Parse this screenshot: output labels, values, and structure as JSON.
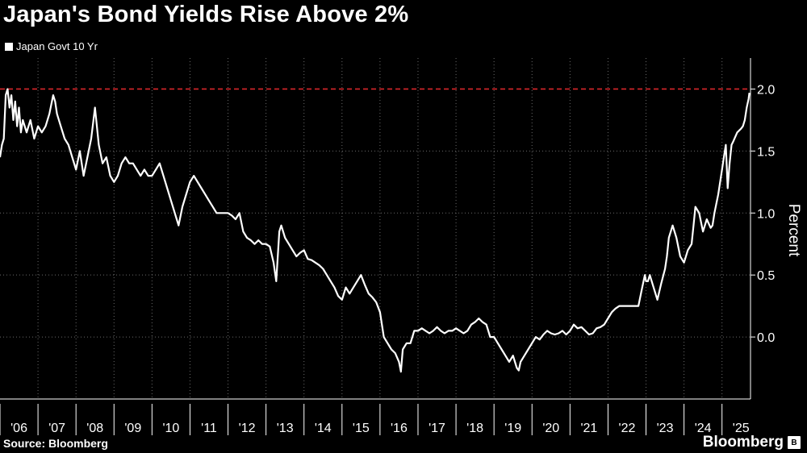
{
  "colors": {
    "background": "#000000",
    "series": "#ffffff",
    "threshold": "#d9262b",
    "grid": "#6a6a6a",
    "axis": "#ffffff"
  },
  "footer": {
    "source": "Source: Bloomberg",
    "brand": "Bloomberg",
    "brand_badge_icon": "bloomberg-badge-icon"
  },
  "chart_data": {
    "type": "line",
    "title": "Japan's Bond Yields Rise Above 2%",
    "legend": {
      "position": "top-left",
      "entries": [
        "Japan Govt 10 Yr"
      ]
    },
    "ylabel": "Percent",
    "xlabel": "",
    "xlim": [
      2006.0,
      2025.75
    ],
    "ylim": [
      -0.5,
      2.25
    ],
    "y_ticks": [
      0.0,
      0.5,
      1.0,
      1.5,
      2.0
    ],
    "y_tick_labels": [
      "0.0",
      "0.5",
      "1.0",
      "1.5",
      "2.0"
    ],
    "x_ticks": [
      2006,
      2007,
      2008,
      2009,
      2010,
      2011,
      2012,
      2013,
      2014,
      2015,
      2016,
      2017,
      2018,
      2019,
      2020,
      2021,
      2022,
      2023,
      2024,
      2025
    ],
    "x_tick_labels": [
      "'06",
      "'07",
      "'08",
      "'09",
      "'10",
      "'11",
      "'12",
      "'13",
      "'14",
      "'15",
      "'16",
      "'17",
      "'18",
      "'19",
      "'20",
      "'21",
      "'22",
      "'23",
      "'24",
      "'25"
    ],
    "grid": true,
    "threshold_line": {
      "y": 2.0,
      "style": "dashed"
    },
    "series": [
      {
        "name": "Japan Govt 10 Yr",
        "x": [
          2006.0,
          2006.05,
          2006.1,
          2006.15,
          2006.2,
          2006.25,
          2006.3,
          2006.35,
          2006.4,
          2006.45,
          2006.5,
          2006.55,
          2006.6,
          2006.7,
          2006.8,
          2006.9,
          2007.0,
          2007.1,
          2007.2,
          2007.3,
          2007.4,
          2007.45,
          2007.5,
          2007.6,
          2007.7,
          2007.8,
          2007.9,
          2008.0,
          2008.1,
          2008.2,
          2008.3,
          2008.4,
          2008.5,
          2008.6,
          2008.7,
          2008.8,
          2008.9,
          2009.0,
          2009.1,
          2009.2,
          2009.3,
          2009.4,
          2009.5,
          2009.6,
          2009.7,
          2009.8,
          2009.9,
          2010.0,
          2010.1,
          2010.2,
          2010.3,
          2010.4,
          2010.5,
          2010.6,
          2010.7,
          2010.8,
          2010.9,
          2011.0,
          2011.1,
          2011.2,
          2011.3,
          2011.4,
          2011.5,
          2011.6,
          2011.7,
          2011.8,
          2011.9,
          2012.0,
          2012.1,
          2012.2,
          2012.3,
          2012.4,
          2012.5,
          2012.6,
          2012.7,
          2012.8,
          2012.9,
          2013.0,
          2013.1,
          2013.2,
          2013.27,
          2013.35,
          2013.4,
          2013.5,
          2013.6,
          2013.7,
          2013.8,
          2013.9,
          2014.0,
          2014.1,
          2014.2,
          2014.3,
          2014.4,
          2014.5,
          2014.6,
          2014.7,
          2014.8,
          2014.9,
          2015.0,
          2015.1,
          2015.2,
          2015.3,
          2015.4,
          2015.5,
          2015.6,
          2015.7,
          2015.8,
          2015.9,
          2016.0,
          2016.1,
          2016.2,
          2016.3,
          2016.4,
          2016.5,
          2016.55,
          2016.6,
          2016.7,
          2016.8,
          2016.9,
          2017.0,
          2017.1,
          2017.2,
          2017.3,
          2017.4,
          2017.5,
          2017.6,
          2017.7,
          2017.8,
          2017.9,
          2018.0,
          2018.1,
          2018.2,
          2018.3,
          2018.4,
          2018.5,
          2018.6,
          2018.7,
          2018.8,
          2018.9,
          2019.0,
          2019.1,
          2019.2,
          2019.3,
          2019.4,
          2019.5,
          2019.6,
          2019.65,
          2019.7,
          2019.8,
          2019.9,
          2020.0,
          2020.1,
          2020.2,
          2020.3,
          2020.4,
          2020.5,
          2020.6,
          2020.7,
          2020.8,
          2020.9,
          2021.0,
          2021.1,
          2021.2,
          2021.3,
          2021.4,
          2021.5,
          2021.6,
          2021.7,
          2021.8,
          2021.9,
          2022.0,
          2022.1,
          2022.2,
          2022.3,
          2022.4,
          2022.5,
          2022.6,
          2022.7,
          2022.8,
          2022.9,
          2022.97,
          2023.0,
          2023.05,
          2023.1,
          2023.2,
          2023.3,
          2023.4,
          2023.5,
          2023.55,
          2023.6,
          2023.7,
          2023.8,
          2023.9,
          2024.0,
          2024.1,
          2024.2,
          2024.25,
          2024.3,
          2024.4,
          2024.5,
          2024.6,
          2024.7,
          2024.75,
          2024.8,
          2024.9,
          2025.0,
          2025.05,
          2025.1,
          2025.15,
          2025.2,
          2025.25,
          2025.3,
          2025.4,
          2025.5,
          2025.55,
          2025.6,
          2025.65,
          2025.7,
          2025.72
        ],
        "values": [
          1.45,
          1.55,
          1.6,
          1.95,
          2.0,
          1.85,
          1.95,
          1.75,
          1.9,
          1.7,
          1.85,
          1.65,
          1.75,
          1.65,
          1.75,
          1.6,
          1.7,
          1.65,
          1.7,
          1.8,
          1.95,
          1.9,
          1.8,
          1.7,
          1.6,
          1.55,
          1.45,
          1.35,
          1.5,
          1.3,
          1.45,
          1.6,
          1.85,
          1.55,
          1.4,
          1.45,
          1.3,
          1.25,
          1.3,
          1.4,
          1.45,
          1.4,
          1.4,
          1.35,
          1.3,
          1.35,
          1.3,
          1.3,
          1.35,
          1.4,
          1.3,
          1.2,
          1.1,
          1.0,
          0.9,
          1.05,
          1.15,
          1.25,
          1.3,
          1.25,
          1.2,
          1.15,
          1.1,
          1.05,
          1.0,
          1.0,
          1.0,
          1.0,
          0.98,
          0.95,
          1.0,
          0.85,
          0.8,
          0.78,
          0.75,
          0.78,
          0.75,
          0.75,
          0.73,
          0.6,
          0.45,
          0.85,
          0.9,
          0.8,
          0.75,
          0.7,
          0.65,
          0.68,
          0.7,
          0.63,
          0.62,
          0.6,
          0.58,
          0.55,
          0.5,
          0.45,
          0.4,
          0.33,
          0.3,
          0.4,
          0.35,
          0.4,
          0.45,
          0.5,
          0.42,
          0.35,
          0.32,
          0.28,
          0.2,
          0.0,
          -0.05,
          -0.1,
          -0.13,
          -0.2,
          -0.28,
          -0.1,
          -0.05,
          -0.05,
          0.05,
          0.05,
          0.07,
          0.05,
          0.03,
          0.05,
          0.08,
          0.05,
          0.03,
          0.05,
          0.05,
          0.07,
          0.05,
          0.03,
          0.05,
          0.1,
          0.12,
          0.15,
          0.12,
          0.1,
          0.0,
          0.0,
          -0.05,
          -0.1,
          -0.15,
          -0.2,
          -0.15,
          -0.25,
          -0.27,
          -0.2,
          -0.15,
          -0.1,
          -0.05,
          0.0,
          -0.02,
          0.02,
          0.05,
          0.03,
          0.02,
          0.03,
          0.05,
          0.02,
          0.05,
          0.1,
          0.07,
          0.08,
          0.05,
          0.02,
          0.03,
          0.07,
          0.08,
          0.1,
          0.15,
          0.2,
          0.23,
          0.25,
          0.25,
          0.25,
          0.25,
          0.25,
          0.25,
          0.4,
          0.5,
          0.45,
          0.45,
          0.5,
          0.4,
          0.3,
          0.43,
          0.55,
          0.65,
          0.8,
          0.9,
          0.8,
          0.65,
          0.6,
          0.7,
          0.75,
          0.9,
          1.05,
          1.0,
          0.85,
          0.95,
          0.88,
          0.9,
          1.0,
          1.15,
          1.35,
          1.45,
          1.55,
          1.2,
          1.4,
          1.55,
          1.58,
          1.65,
          1.68,
          1.7,
          1.75,
          1.85,
          1.92,
          1.97
        ]
      }
    ]
  }
}
